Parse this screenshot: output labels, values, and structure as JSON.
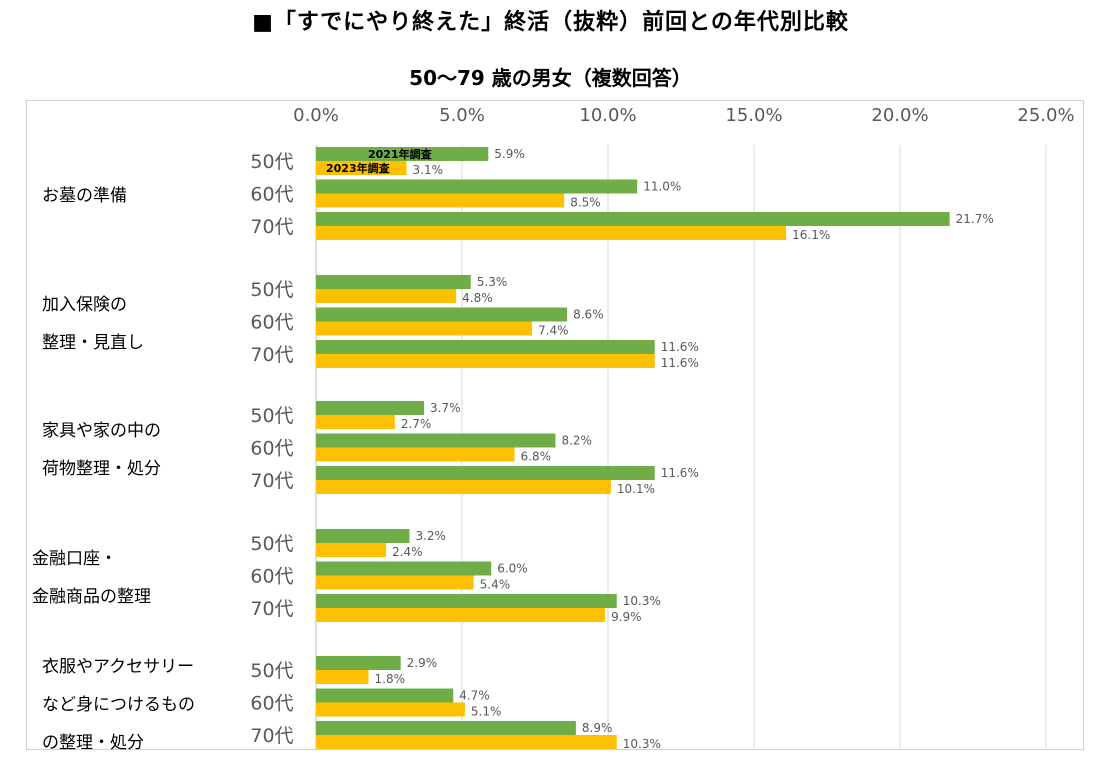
{
  "title": "■「すでにやり終えた」終活（抜粋）前回との年代別比較",
  "subtitle": "50〜79 歳の男女（複数回答）",
  "chart_data": {
    "type": "bar",
    "orientation": "horizontal",
    "xlim": [
      0,
      25
    ],
    "x_ticks": [
      "0.0%",
      "5.0%",
      "10.0%",
      "15.0%",
      "20.0%",
      "25.0%"
    ],
    "grid": true,
    "colors": {
      "2021": "#70ad47",
      "2023": "#ffc000"
    },
    "legend_2021": "2021年調査",
    "legend_2023": "2023年調査",
    "groups": [
      {
        "label_lines": [
          "お墓の準備"
        ],
        "rows": [
          {
            "age": "50代",
            "v2021": 5.9,
            "v2023": 3.1,
            "l2021": "5.9%",
            "l2023": "3.1%"
          },
          {
            "age": "60代",
            "v2021": 11.0,
            "v2023": 8.5,
            "l2021": "11.0%",
            "l2023": "8.5%"
          },
          {
            "age": "70代",
            "v2021": 21.7,
            "v2023": 16.1,
            "l2021": "21.7%",
            "l2023": "16.1%"
          }
        ]
      },
      {
        "label_lines": [
          "加入保険の",
          "整理・見直し"
        ],
        "rows": [
          {
            "age": "50代",
            "v2021": 5.3,
            "v2023": 4.8,
            "l2021": "5.3%",
            "l2023": "4.8%"
          },
          {
            "age": "60代",
            "v2021": 8.6,
            "v2023": 7.4,
            "l2021": "8.6%",
            "l2023": "7.4%"
          },
          {
            "age": "70代",
            "v2021": 11.6,
            "v2023": 11.6,
            "l2021": "11.6%",
            "l2023": "11.6%"
          }
        ]
      },
      {
        "label_lines": [
          "家具や家の中の",
          "荷物整理・処分"
        ],
        "rows": [
          {
            "age": "50代",
            "v2021": 3.7,
            "v2023": 2.7,
            "l2021": "3.7%",
            "l2023": "2.7%"
          },
          {
            "age": "60代",
            "v2021": 8.2,
            "v2023": 6.8,
            "l2021": "8.2%",
            "l2023": "6.8%"
          },
          {
            "age": "70代",
            "v2021": 11.6,
            "v2023": 10.1,
            "l2021": "11.6%",
            "l2023": "10.1%"
          }
        ]
      },
      {
        "label_lines": [
          "金融口座・",
          "金融商品の整理"
        ],
        "rows": [
          {
            "age": "50代",
            "v2021": 3.2,
            "v2023": 2.4,
            "l2021": "3.2%",
            "l2023": "2.4%"
          },
          {
            "age": "60代",
            "v2021": 6.0,
            "v2023": 5.4,
            "l2021": "6.0%",
            "l2023": "5.4%"
          },
          {
            "age": "70代",
            "v2021": 10.3,
            "v2023": 9.9,
            "l2021": "10.3%",
            "l2023": "9.9%"
          }
        ]
      },
      {
        "label_lines": [
          "衣服やアクセサリー",
          "など身につけるもの",
          "の整理・処分"
        ],
        "rows": [
          {
            "age": "50代",
            "v2021": 2.9,
            "v2023": 1.8,
            "l2021": "2.9%",
            "l2023": "1.8%"
          },
          {
            "age": "60代",
            "v2021": 4.7,
            "v2023": 5.1,
            "l2021": "4.7%",
            "l2023": "5.1%"
          },
          {
            "age": "70代",
            "v2021": 8.9,
            "v2023": 10.3,
            "l2021": "8.9%",
            "l2023": "10.3%"
          }
        ]
      }
    ]
  }
}
